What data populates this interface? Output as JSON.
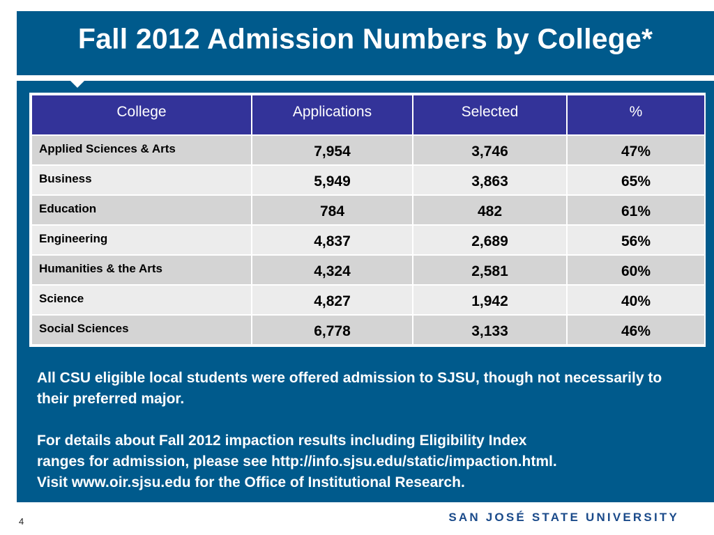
{
  "slide": {
    "title": "Fall 2012 Admission Numbers by College*",
    "page_number": "4",
    "footer_logo": "SAN JOSÉ STATE UNIVERSITY"
  },
  "table": {
    "headers": [
      "College",
      "Applications",
      "Selected",
      "%"
    ],
    "rows": [
      {
        "college": "Applied Sciences & Arts",
        "applications": "7,954",
        "selected": "3,746",
        "percent": "47%"
      },
      {
        "college": "Business",
        "applications": "5,949",
        "selected": "3,863",
        "percent": "65%"
      },
      {
        "college": "Education",
        "applications": "784",
        "selected": "482",
        "percent": "61%"
      },
      {
        "college": "Engineering",
        "applications": "4,837",
        "selected": "2,689",
        "percent": "56%"
      },
      {
        "college": "Humanities & the Arts",
        "applications": "4,324",
        "selected": "2,581",
        "percent": "60%"
      },
      {
        "college": "Science",
        "applications": "4,827",
        "selected": "1,942",
        "percent": "40%"
      },
      {
        "college": "Social Sciences",
        "applications": "6,778",
        "selected": "3,133",
        "percent": "46%"
      }
    ]
  },
  "notes": {
    "para1": "All CSU eligible local students were offered admission to SJSU, though not necessarily to their preferred major.",
    "para2_line1": "For details about Fall 2012 impaction results including Eligibility Index",
    "para2_line2": "ranges for admission, please see http://info.sjsu.edu/static/impaction.html.",
    "para2_line3": "Visit www.oir.sjsu.edu for the Office of Institutional Research."
  },
  "colors": {
    "panel": "#005a8c",
    "table_header": "#333399",
    "row_dark": "#d4d4d4",
    "row_light": "#ececec",
    "footer_logo": "#1a4a8a"
  }
}
